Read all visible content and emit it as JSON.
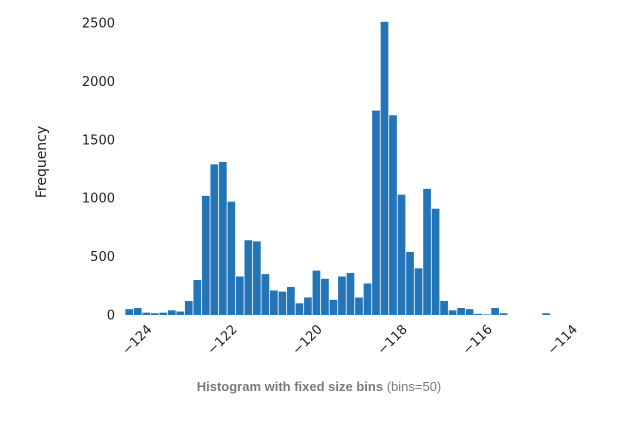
{
  "chart_data": {
    "type": "bar",
    "ylabel": "Frequency",
    "ylim": [
      0,
      2500
    ],
    "xlim": [
      -124.6,
      -114.0
    ],
    "bar_color": "#2474b8",
    "bins": {
      "start": -124.5,
      "width": 0.2,
      "count": 50,
      "values": [
        50,
        60,
        20,
        15,
        20,
        40,
        30,
        120,
        300,
        1020,
        1290,
        1310,
        970,
        330,
        640,
        630,
        350,
        210,
        200,
        240,
        100,
        150,
        380,
        310,
        130,
        330,
        360,
        150,
        270,
        1750,
        2510,
        1710,
        1030,
        540,
        400,
        1080,
        910,
        120,
        40,
        60,
        50,
        10,
        5,
        60,
        15,
        0,
        0,
        0,
        0,
        15
      ]
    },
    "x_ticks": [
      {
        "value": -124,
        "label": "−124"
      },
      {
        "value": -122,
        "label": "−122"
      },
      {
        "value": -120,
        "label": "−120"
      },
      {
        "value": -118,
        "label": "−118"
      },
      {
        "value": -116,
        "label": "−116"
      },
      {
        "value": -114,
        "label": "−114"
      }
    ],
    "y_ticks": [
      {
        "value": 0,
        "label": "0"
      },
      {
        "value": 500,
        "label": "500"
      },
      {
        "value": 1000,
        "label": "1000"
      },
      {
        "value": 1500,
        "label": "1500"
      },
      {
        "value": 2000,
        "label": "2000"
      },
      {
        "value": 2500,
        "label": "2500"
      }
    ]
  },
  "caption": {
    "title": "Histogram with fixed size bins",
    "note": " (bins=50)"
  }
}
